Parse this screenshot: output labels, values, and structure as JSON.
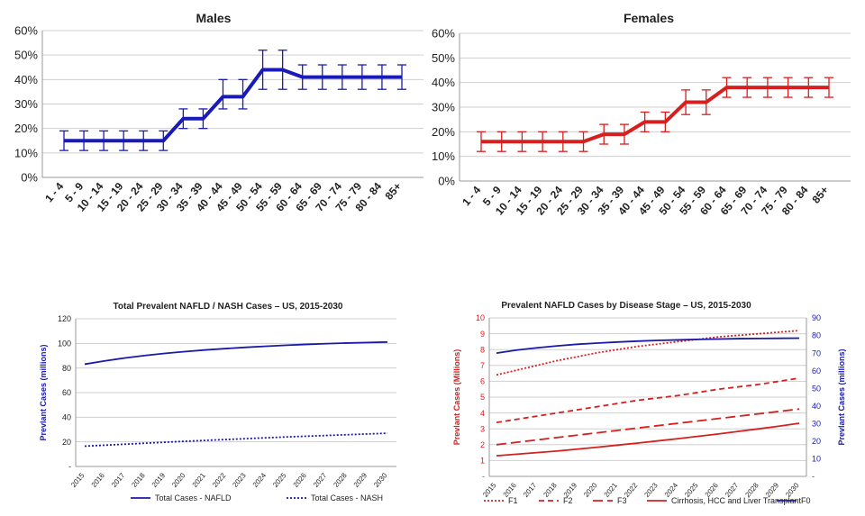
{
  "chart_data": [
    {
      "id": "males",
      "type": "line",
      "title": "Males",
      "xlabel": "",
      "ylabel": "",
      "ylim": [
        0,
        0.6
      ],
      "yticks": [
        0,
        0.1,
        0.2,
        0.3,
        0.4,
        0.5,
        0.6
      ],
      "ytick_labels": [
        "0%",
        "10%",
        "20%",
        "30%",
        "40%",
        "50%",
        "60%"
      ],
      "categories": [
        "1 - 4",
        "5 - 9",
        "10 - 14",
        "15 - 19",
        "20 - 24",
        "25 - 29",
        "30 - 34",
        "35 - 39",
        "40 - 44",
        "45 - 49",
        "50 - 54",
        "55 - 59",
        "60 - 64",
        "65 - 69",
        "70 - 74",
        "75 - 79",
        "80 - 84",
        "85+"
      ],
      "series": [
        {
          "values": [
            0.15,
            0.15,
            0.15,
            0.15,
            0.15,
            0.15,
            0.24,
            0.24,
            0.33,
            0.33,
            0.44,
            0.44,
            0.41,
            0.41,
            0.41,
            0.41,
            0.41,
            0.41
          ],
          "lower": [
            0.11,
            0.11,
            0.11,
            0.11,
            0.11,
            0.11,
            0.2,
            0.2,
            0.28,
            0.28,
            0.36,
            0.36,
            0.36,
            0.36,
            0.36,
            0.36,
            0.36,
            0.36
          ],
          "upper": [
            0.19,
            0.19,
            0.19,
            0.19,
            0.19,
            0.19,
            0.28,
            0.28,
            0.4,
            0.4,
            0.52,
            0.52,
            0.46,
            0.46,
            0.46,
            0.46,
            0.46,
            0.46
          ],
          "color": "#1a1ab8",
          "style": "step"
        }
      ],
      "grid": true
    },
    {
      "id": "females",
      "type": "line",
      "title": "Females",
      "xlabel": "",
      "ylabel": "",
      "ylim": [
        0,
        0.6
      ],
      "yticks": [
        0,
        0.1,
        0.2,
        0.3,
        0.4,
        0.5,
        0.6
      ],
      "ytick_labels": [
        "0%",
        "10%",
        "20%",
        "30%",
        "40%",
        "50%",
        "60%"
      ],
      "categories": [
        "1 - 4",
        "5 - 9",
        "10 - 14",
        "15 - 19",
        "20 - 24",
        "25 - 29",
        "30 - 34",
        "35 - 39",
        "40 - 44",
        "45 - 49",
        "50 - 54",
        "55 - 59",
        "60 - 64",
        "65 - 69",
        "70 - 74",
        "75 - 79",
        "80 - 84",
        "85+"
      ],
      "series": [
        {
          "values": [
            0.16,
            0.16,
            0.16,
            0.16,
            0.16,
            0.16,
            0.19,
            0.19,
            0.24,
            0.24,
            0.32,
            0.32,
            0.38,
            0.38,
            0.38,
            0.38,
            0.38,
            0.38
          ],
          "lower": [
            0.12,
            0.12,
            0.12,
            0.12,
            0.12,
            0.12,
            0.15,
            0.15,
            0.2,
            0.2,
            0.27,
            0.27,
            0.34,
            0.34,
            0.34,
            0.34,
            0.34,
            0.34
          ],
          "upper": [
            0.2,
            0.2,
            0.2,
            0.2,
            0.2,
            0.2,
            0.23,
            0.23,
            0.28,
            0.28,
            0.37,
            0.37,
            0.42,
            0.42,
            0.42,
            0.42,
            0.42,
            0.42
          ],
          "color": "#d61f1f",
          "style": "step"
        }
      ],
      "grid": true
    },
    {
      "id": "total",
      "type": "line",
      "title": "Total Prevalent NAFLD / NASH Cases – US, 2015-2030",
      "xlabel": "",
      "ylabel": "Prevlant Cases (millions)",
      "ylim": [
        0,
        120
      ],
      "yticks": [
        0,
        20,
        40,
        60,
        80,
        100,
        120
      ],
      "ytick_labels": [
        "-",
        "20",
        "40",
        "60",
        "80",
        "100",
        "120"
      ],
      "categories": [
        "2015",
        "2016",
        "2017",
        "2018",
        "2019",
        "2020",
        "2021",
        "2022",
        "2023",
        "2024",
        "2025",
        "2026",
        "2027",
        "2028",
        "2029",
        "2030"
      ],
      "series": [
        {
          "name": "Total Cases - NAFLD",
          "color": "#1a1aa8",
          "dash": "solid",
          "values": [
            83.1,
            85.8,
            88.2,
            90.2,
            91.9,
            93.4,
            94.7,
            95.8,
            96.8,
            97.7,
            98.5,
            99.2,
            99.8,
            100.3,
            100.7,
            101.1
          ]
        },
        {
          "name": "Total Cases - NASH",
          "color": "#1a1aa8",
          "dash": "dotted",
          "values": [
            16.5,
            17.3,
            18.1,
            18.9,
            19.7,
            20.5,
            21.2,
            21.9,
            22.6,
            23.3,
            24.0,
            24.6,
            25.2,
            25.8,
            26.4,
            27.0
          ]
        }
      ],
      "legend": "bottom",
      "grid": true
    },
    {
      "id": "stage",
      "type": "line",
      "title": "Prevalent NAFLD Cases by Disease Stage – US, 2015-2030",
      "xlabel": "",
      "ylabel": "Prevlant Cases (Millions)",
      "ylabel_right": "Prevlant Cases (millions)",
      "ylim": [
        0,
        10
      ],
      "ylim_right": [
        0,
        90
      ],
      "yticks": [
        0,
        1,
        2,
        3,
        4,
        5,
        6,
        7,
        8,
        9,
        10
      ],
      "ytick_labels": [
        "-",
        "1",
        "2",
        "3",
        "4",
        "5",
        "6",
        "7",
        "8",
        "9",
        "10"
      ],
      "yticks_right": [
        0,
        10,
        20,
        30,
        40,
        50,
        60,
        70,
        80,
        90
      ],
      "ytick_labels_right": [
        "-",
        "10",
        "20",
        "30",
        "40",
        "50",
        "60",
        "70",
        "80",
        "90"
      ],
      "categories": [
        "2015",
        "2016",
        "2017",
        "2018",
        "2019",
        "2020",
        "2021",
        "2022",
        "2023",
        "2024",
        "2025",
        "2026",
        "2027",
        "2028",
        "2029",
        "2030"
      ],
      "series": [
        {
          "name": "F1",
          "color": "#d62020",
          "dash": "dotted",
          "axis": "left",
          "values": [
            6.4,
            6.7,
            7.0,
            7.3,
            7.55,
            7.8,
            8.0,
            8.2,
            8.35,
            8.5,
            8.65,
            8.8,
            8.9,
            9.0,
            9.1,
            9.2
          ]
        },
        {
          "name": "F2",
          "color": "#d62020",
          "dash": "dashed",
          "axis": "left",
          "values": [
            3.4,
            3.6,
            3.8,
            4.0,
            4.2,
            4.4,
            4.6,
            4.8,
            4.95,
            5.1,
            5.3,
            5.5,
            5.65,
            5.8,
            6.0,
            6.2
          ]
        },
        {
          "name": "F3",
          "color": "#d62020",
          "dash": "longdash",
          "axis": "left",
          "values": [
            2.0,
            2.15,
            2.3,
            2.45,
            2.6,
            2.75,
            2.9,
            3.05,
            3.2,
            3.35,
            3.5,
            3.65,
            3.8,
            3.95,
            4.1,
            4.25
          ]
        },
        {
          "name": "Cirrhosis, HCC and Liver Transplant",
          "color": "#d62020",
          "dash": "solid",
          "axis": "left",
          "values": [
            1.3,
            1.4,
            1.5,
            1.6,
            1.72,
            1.84,
            1.97,
            2.1,
            2.24,
            2.38,
            2.53,
            2.68,
            2.84,
            3.0,
            3.17,
            3.35
          ]
        },
        {
          "name": "F0",
          "color": "#1a1aa8",
          "dash": "solid",
          "axis": "right",
          "values": [
            70.0,
            71.7,
            73.0,
            74.1,
            75.0,
            75.7,
            76.3,
            76.8,
            77.2,
            77.5,
            77.8,
            78.0,
            78.2,
            78.3,
            78.4,
            78.5
          ]
        }
      ],
      "legend": "bottom",
      "grid": true
    }
  ]
}
